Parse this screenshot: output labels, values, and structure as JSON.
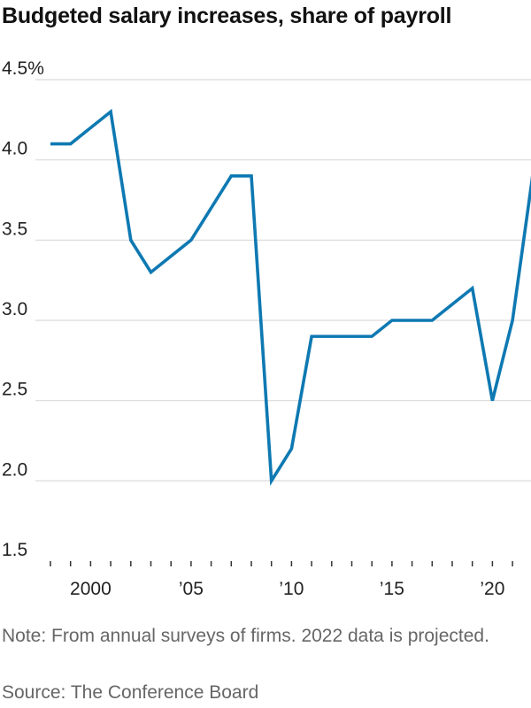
{
  "chart_data": {
    "type": "line",
    "title": "Budgeted salary increases, share of payroll",
    "xlabel": "",
    "ylabel": "",
    "xlim": [
      1997,
      2022
    ],
    "ylim": [
      1.5,
      4.5
    ],
    "yticks": [
      1.5,
      2.0,
      2.5,
      3.0,
      3.5,
      4.0,
      4.5
    ],
    "ytick_labels": [
      "1.5",
      "2.0",
      "2.5",
      "3.0",
      "3.5",
      "4.0",
      "4.5%"
    ],
    "xticks_labeled": [
      2000,
      2005,
      2010,
      2015,
      2020
    ],
    "xtick_labels": [
      "2000",
      "’05",
      "’10",
      "’15",
      "’20"
    ],
    "xticks_minor": [
      1998,
      1999,
      2000,
      2001,
      2002,
      2003,
      2004,
      2005,
      2006,
      2007,
      2008,
      2009,
      2010,
      2011,
      2012,
      2013,
      2014,
      2015,
      2016,
      2017,
      2018,
      2019,
      2020,
      2021,
      2022
    ],
    "grid": true,
    "line_color": "#0e79b2",
    "series": [
      {
        "x": [
          1998,
          1999,
          2000,
          2001,
          2002,
          2003,
          2004,
          2005,
          2006,
          2007,
          2008,
          2009,
          2010,
          2011,
          2012,
          2013,
          2014,
          2015,
          2016,
          2017,
          2018,
          2019,
          2020,
          2021,
          2022
        ],
        "values": [
          4.1,
          4.1,
          4.2,
          4.3,
          3.5,
          3.3,
          3.4,
          3.5,
          3.7,
          3.9,
          3.9,
          2.0,
          2.2,
          2.9,
          2.9,
          2.9,
          2.9,
          3.0,
          3.0,
          3.0,
          3.1,
          3.2,
          2.5,
          3.0,
          3.9
        ]
      }
    ]
  },
  "note": "Note: From annual surveys of firms. 2022 data is projected.",
  "source": "Source: The Conference Board"
}
